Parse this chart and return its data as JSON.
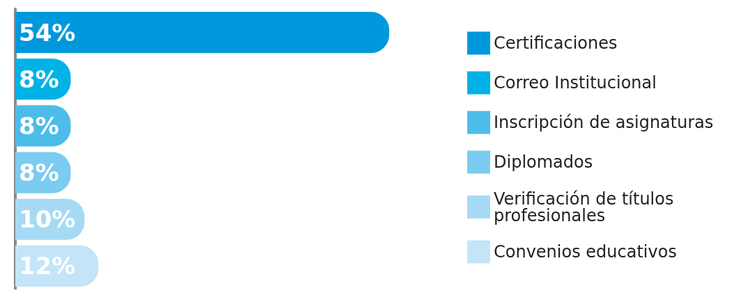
{
  "chart_data": {
    "type": "bar",
    "orientation": "horizontal",
    "stacked": true,
    "categories": [
      null,
      null,
      null,
      null,
      null,
      null
    ],
    "series": [
      {
        "name": "Certificaciones",
        "color": "#0098dc",
        "values": [
          54,
          null,
          null,
          null,
          null,
          null
        ],
        "value_labels": [
          "54%",
          null,
          null,
          null,
          null,
          null
        ]
      },
      {
        "name": "Correo Institucional",
        "color": "#00b2e6",
        "values": [
          null,
          8,
          null,
          null,
          null,
          null
        ],
        "value_labels": [
          null,
          "8%",
          null,
          null,
          null,
          null
        ]
      },
      {
        "name": "Inscripción de asignaturas",
        "color": "#4dbce9",
        "values": [
          null,
          null,
          8,
          null,
          null,
          null
        ],
        "value_labels": [
          null,
          null,
          "8%",
          null,
          null,
          null
        ]
      },
      {
        "name": "Diplomados",
        "color": "#7ccbf0",
        "values": [
          null,
          null,
          null,
          8,
          null,
          null
        ],
        "value_labels": [
          null,
          null,
          null,
          "8%",
          null,
          null
        ]
      },
      {
        "name": "Verificación de títulos profesionales",
        "color": "#a6daf4",
        "values": [
          null,
          null,
          null,
          null,
          10,
          null
        ],
        "value_labels": [
          null,
          null,
          null,
          null,
          "10%",
          null
        ]
      },
      {
        "name": "Convenios educativos",
        "color": "#c3e5f7",
        "values": [
          null,
          null,
          null,
          null,
          null,
          12
        ],
        "value_labels": [
          null,
          null,
          null,
          null,
          null,
          "12%"
        ]
      }
    ],
    "legend": "right",
    "tick_labels": false
  }
}
